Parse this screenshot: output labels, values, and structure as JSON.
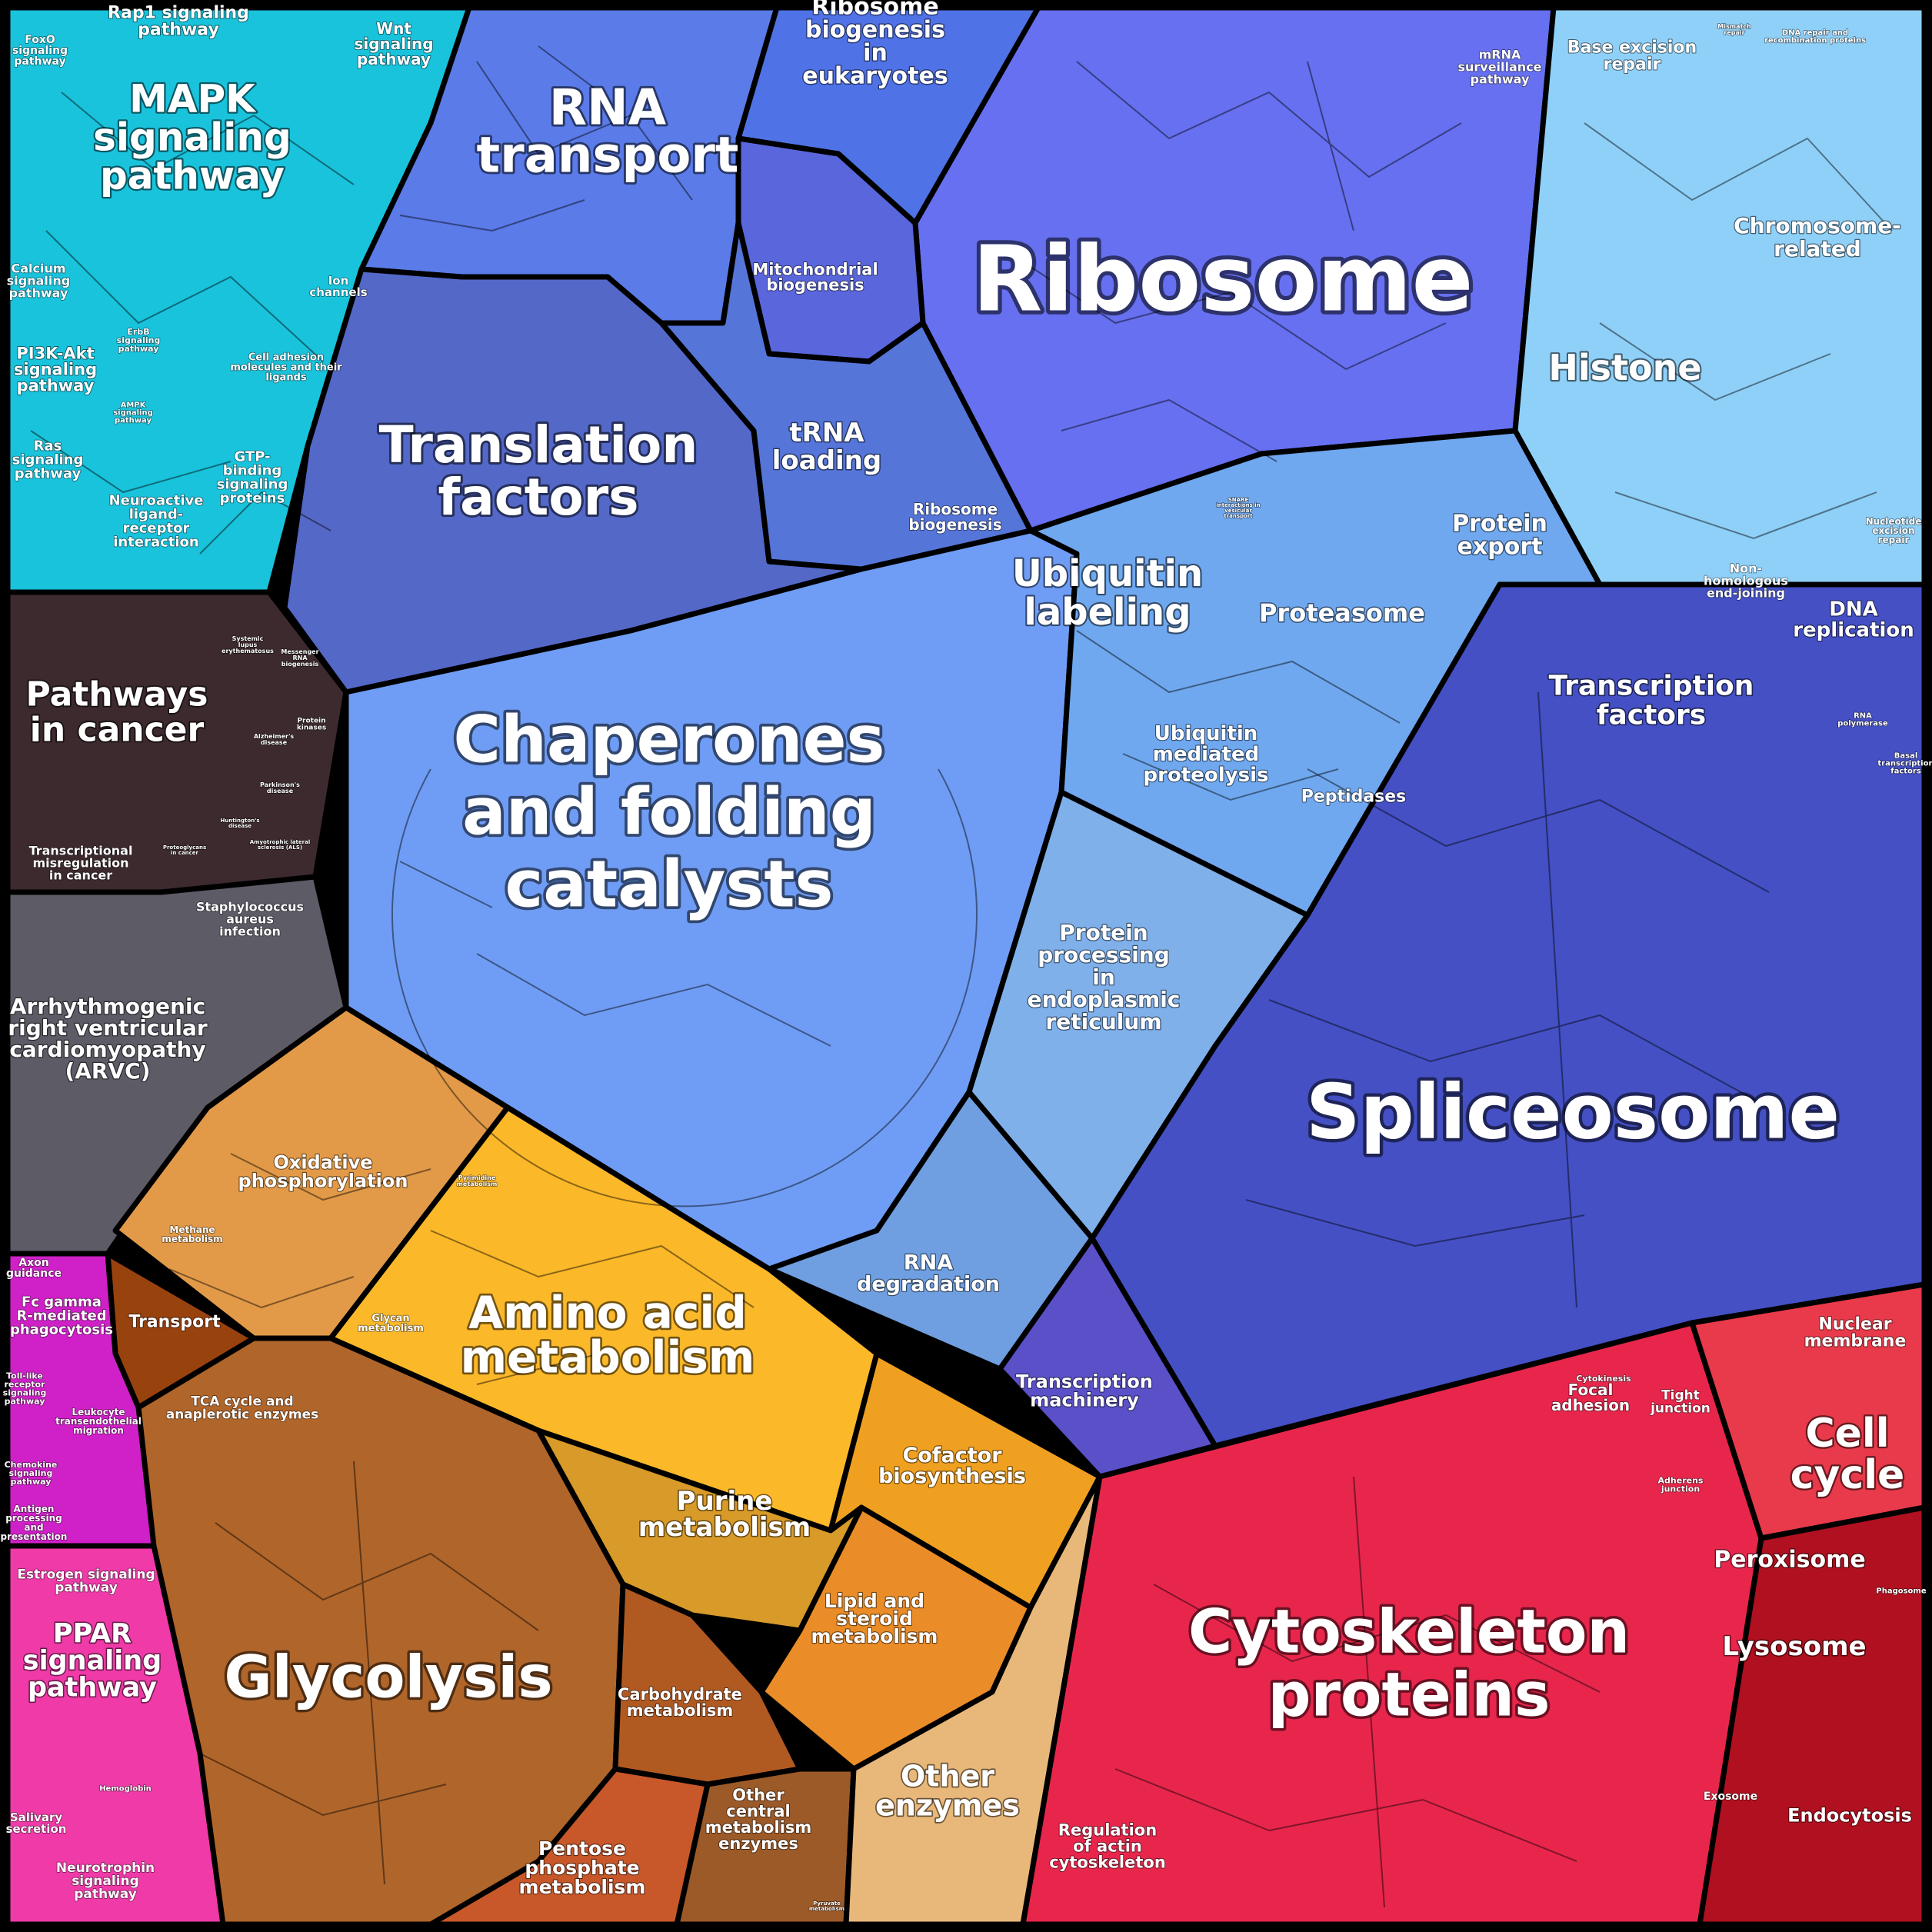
{
  "labels": {
    "ribosome": "Ribosome",
    "rna_transport": [
      "RNA",
      "transport"
    ],
    "ribosome_biogenesis_euk": [
      "Ribosome",
      "biogenesis",
      "in",
      "eukaryotes"
    ],
    "mito_biogenesis": [
      "Mitochondrial",
      "biogenesis"
    ],
    "mrna_surveillance": [
      "mRNA",
      "surveillance",
      "pathway"
    ],
    "translation_factors": [
      "Translation",
      "factors"
    ],
    "trna_loading": [
      "tRNA",
      "loading"
    ],
    "ribosome_biogenesis": [
      "Ribosome",
      "biogenesis"
    ],
    "chaperones": [
      "Chaperones",
      "and folding",
      "catalysts"
    ],
    "ubiquitin_labeling": [
      "Ubiquitin",
      "labeling"
    ],
    "proteasome": "Proteasome",
    "protein_export": [
      "Protein",
      "export"
    ],
    "ubiquitin_proteolysis": [
      "Ubiquitin",
      "mediated",
      "proteolysis"
    ],
    "peptidases": "Peptidases",
    "protein_processing_er": [
      "Protein",
      "processing",
      "in",
      "endoplasmic",
      "reticulum"
    ],
    "rna_degradation": [
      "RNA",
      "degradation"
    ],
    "histone": "Histone",
    "chromosome_related": [
      "Chromosome-",
      "related"
    ],
    "base_excision": [
      "Base excision",
      "repair"
    ],
    "dna_replication": [
      "DNA",
      "replication"
    ],
    "nucleotide_excision": [
      "Nucleotide",
      "excision",
      "repair"
    ],
    "nhej": [
      "Non-",
      "homologous",
      "end-joining"
    ],
    "transcription_factors": [
      "Transcription",
      "factors"
    ],
    "spliceosome": "Spliceosome",
    "transcription_machinery": [
      "Transcription",
      "machinery"
    ],
    "rna_polymerase": [
      "RNA",
      "polymerase"
    ],
    "basal_tf": [
      "Basal",
      "transcription",
      "factors"
    ],
    "mapk": [
      "MAPK",
      "signaling",
      "pathway"
    ],
    "rap1": [
      "Rap1 signaling",
      "pathway"
    ],
    "wnt": [
      "Wnt",
      "signaling",
      "pathway"
    ],
    "foxo": [
      "FoxO",
      "signaling",
      "pathway"
    ],
    "calcium": [
      "Calcium",
      "signaling",
      "pathway"
    ],
    "pi3k": [
      "PI3K-Akt",
      "signaling",
      "pathway"
    ],
    "ras": [
      "Ras",
      "signaling",
      "pathway"
    ],
    "ion_channels": [
      "Ion",
      "channels"
    ],
    "cell_adhesion_molecules": [
      "Cell adhesion",
      "molecules and their",
      "ligands"
    ],
    "gtp_binding": [
      "GTP-",
      "binding",
      "signaling",
      "proteins"
    ],
    "neuroactive": [
      "Neuroactive",
      "ligand-",
      "receptor",
      "interaction"
    ],
    "erbb": [
      "ErbB",
      "signaling",
      "pathway"
    ],
    "ampk": [
      "AMPK",
      "signaling",
      "pathway"
    ],
    "pathways_cancer": [
      "Pathways",
      "in cancer"
    ],
    "transcriptional_misregulation": [
      "Transcriptional",
      "misregulation",
      "in cancer"
    ],
    "staphylococcus": [
      "Staphylococcus",
      "aureus",
      "infection"
    ],
    "arvc": [
      "Arrhythmogenic",
      "right ventricular",
      "cardiomyopathy",
      "(ARVC)"
    ],
    "oxphos": [
      "Oxidative",
      "phosphorylation"
    ],
    "methane": [
      "Methane",
      "metabolism"
    ],
    "transport": "Transport",
    "tca": [
      "TCA cycle and",
      "anaplerotic enzymes"
    ],
    "glycan": [
      "Glycan",
      "metabolism"
    ],
    "amino_acid": [
      "Amino acid",
      "metabolism"
    ],
    "cofactor": [
      "Cofactor",
      "biosynthesis"
    ],
    "purine": [
      "Purine",
      "metabolism"
    ],
    "lipid": [
      "Lipid and",
      "steroid",
      "metabolism"
    ],
    "glycolysis": "Glycolysis",
    "carbohydrate": [
      "Carbohydrate",
      "metabolism"
    ],
    "other_central": [
      "Other",
      "central",
      "metabolism",
      "enzymes"
    ],
    "pentose": [
      "Pentose",
      "phosphate",
      "metabolism"
    ],
    "other_enzymes": [
      "Other",
      "enzymes"
    ],
    "axon": [
      "Axon",
      "guidance"
    ],
    "fc_gamma": [
      "Fc gamma",
      "R-mediated",
      "phagocytosis"
    ],
    "toll_like": [
      "Toll-like",
      "receptor",
      "signaling",
      "pathway"
    ],
    "leukocyte": [
      "Leukocyte",
      "transendothelial",
      "migration"
    ],
    "chemokine": [
      "Chemokine",
      "signaling",
      "pathway"
    ],
    "antigen": [
      "Antigen",
      "processing",
      "and",
      "presentation"
    ],
    "estrogen": [
      "Estrogen signaling",
      "pathway"
    ],
    "ppar": [
      "PPAR",
      "signaling",
      "pathway"
    ],
    "salivary": [
      "Salivary",
      "secretion"
    ],
    "neurotrophin": [
      "Neurotrophin",
      "signaling",
      "pathway"
    ],
    "hemoglobin": "Hemoglobin",
    "cytoskeleton": [
      "Cytoskeleton",
      "proteins"
    ],
    "regulation_actin": [
      "Regulation",
      "of actin",
      "cytoskeleton"
    ],
    "focal_adhesion": [
      "Focal",
      "adhesion"
    ],
    "tight_junction": [
      "Tight",
      "junction"
    ],
    "adherens": [
      "Adherens",
      "junction"
    ],
    "cytokinesis": "Cytokinesis",
    "nuclear_membrane": [
      "Nuclear",
      "membrane"
    ],
    "cell_cycle": [
      "Cell",
      "cycle"
    ],
    "peroxisome": "Peroxisome",
    "lysosome": "Lysosome",
    "phagosome": "Phagosome",
    "exosome": "Exosome",
    "endocytosis": "Endocytosis",
    "systemic_lupus": [
      "Systemic",
      "lupus",
      "erythematosus"
    ],
    "alzheimers": [
      "Alzheimer's",
      "disease"
    ],
    "parkinsons": [
      "Parkinson's",
      "disease"
    ],
    "huntingtons": [
      "Huntington's",
      "disease"
    ],
    "als": [
      "Amyotrophic lateral",
      "sclerosis (ALS)"
    ],
    "proteoglycans": [
      "Proteoglycans",
      "in cancer"
    ],
    "messenger_rna_biogenesis": [
      "Messenger",
      "RNA",
      "biogenesis"
    ],
    "protein_kinases": [
      "Protein",
      "kinases"
    ],
    "dna_repair_recomb": [
      "DNA repair and",
      "recombination proteins"
    ],
    "mismatch_repair": [
      "Mismatch",
      "repair"
    ],
    "snare": [
      "SNARE",
      "interactions in",
      "vesicular",
      "transport"
    ],
    "pyruvate": [
      "Pyruvate",
      "metabolism"
    ],
    "pyrimidine": [
      "Pyrimidine",
      "metabolism"
    ]
  },
  "colors": {
    "cyan_signaling": "#19c3dc",
    "blue_ribosome": "#6670f0",
    "blue_rna_transport": "#5a7be8",
    "blue_translation": "#5468c8",
    "blue_chaperones": "#6f9df5",
    "blue_light": "#7fb8f0",
    "blue_spliceosome": "#4450c4",
    "blue_histone": "#8fd0f8",
    "dark_disease": "#3c2a2e",
    "gray_arvc": "#5c5b66",
    "orange_oxphos": "#e29a48",
    "yellow_amino": "#fbb829",
    "brown_glycolysis": "#b0652a",
    "tan_other": "#e8b87a",
    "magenta_immune": "#d020c8",
    "pink_ppar": "#ef3aa8",
    "red_cytoskeleton": "#e8264c",
    "red_cellcycle": "#e83a4a",
    "darkred_lysosome": "#b01020"
  }
}
